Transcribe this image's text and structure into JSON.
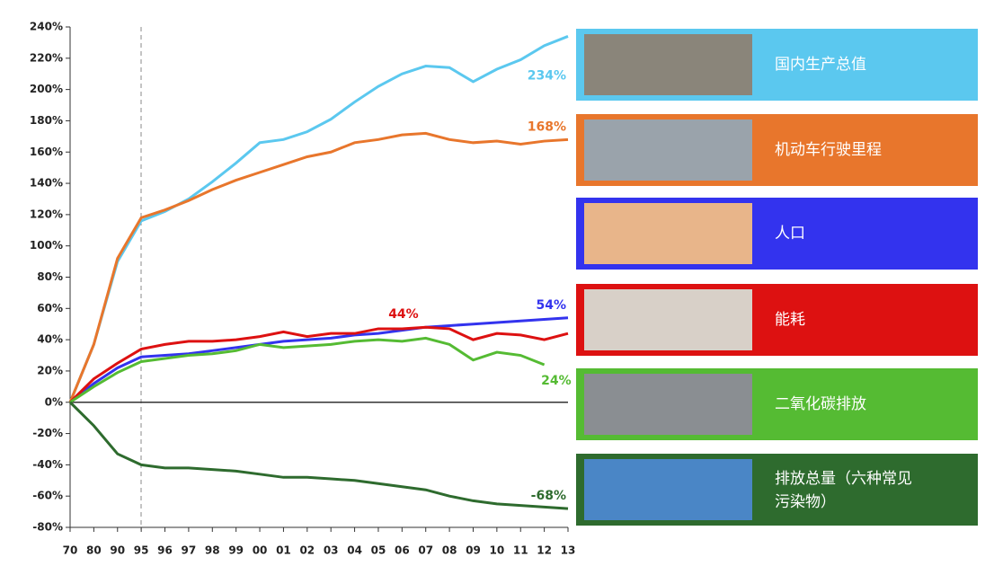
{
  "chart_data": {
    "type": "line",
    "categories": [
      "70",
      "80",
      "90",
      "95",
      "96",
      "97",
      "98",
      "99",
      "00",
      "01",
      "02",
      "03",
      "04",
      "05",
      "06",
      "07",
      "08",
      "09",
      "10",
      "11",
      "12",
      "13"
    ],
    "ylim": [
      -80,
      240
    ],
    "yticks": [
      {
        "value": -80,
        "label": "-80%"
      },
      {
        "value": -60,
        "label": "-60%"
      },
      {
        "value": -40,
        "label": "-40%"
      },
      {
        "value": -20,
        "label": "-20%"
      },
      {
        "value": 0,
        "label": "0%"
      },
      {
        "value": 20,
        "label": "20%"
      },
      {
        "value": 40,
        "label": "40%"
      },
      {
        "value": 60,
        "label": "60%"
      },
      {
        "value": 80,
        "label": "80%"
      },
      {
        "value": 100,
        "label": "100%"
      },
      {
        "value": 120,
        "label": "120%"
      },
      {
        "value": 140,
        "label": "140%"
      },
      {
        "value": 160,
        "label": "160%"
      },
      {
        "value": 180,
        "label": "180%"
      },
      {
        "value": 200,
        "label": "200%"
      },
      {
        "value": 220,
        "label": "220%"
      },
      {
        "value": 240,
        "label": "240%"
      }
    ],
    "series": [
      {
        "name": "国内生产总值",
        "color": "#5bc8ef",
        "values": [
          0,
          37,
          90,
          116,
          122,
          130,
          141,
          153,
          166,
          168,
          173,
          181,
          192,
          202,
          210,
          215,
          214,
          205,
          213,
          219,
          228,
          234
        ],
        "value_labels": [
          null,
          null,
          null,
          null,
          null,
          null,
          null,
          null,
          null,
          null,
          null,
          null,
          null,
          null,
          null,
          null,
          null,
          null,
          null,
          null,
          null,
          "234%"
        ]
      },
      {
        "name": "机动车行驶里程",
        "color": "#e8762c",
        "values": [
          0,
          37,
          92,
          118,
          123,
          129,
          136,
          142,
          147,
          152,
          157,
          160,
          166,
          168,
          171,
          172,
          168,
          166,
          167,
          165,
          167,
          168
        ],
        "value_labels": [
          null,
          null,
          null,
          null,
          null,
          null,
          null,
          null,
          null,
          null,
          null,
          null,
          null,
          null,
          null,
          null,
          null,
          null,
          null,
          null,
          null,
          "168%"
        ]
      },
      {
        "name": "人口",
        "color": "#3333ee",
        "values": [
          0,
          12,
          22,
          29,
          30,
          31,
          33,
          35,
          37,
          39,
          40,
          41,
          43,
          44,
          46,
          48,
          49,
          50,
          51,
          52,
          53,
          54
        ],
        "value_labels": [
          null,
          null,
          null,
          null,
          null,
          null,
          null,
          null,
          null,
          null,
          null,
          null,
          null,
          null,
          null,
          null,
          null,
          null,
          null,
          null,
          null,
          "54%"
        ]
      },
      {
        "name": "能耗",
        "color": "#dd1111",
        "values": [
          0,
          15,
          25,
          34,
          37,
          39,
          39,
          40,
          42,
          45,
          42,
          44,
          44,
          47,
          47,
          48,
          47,
          40,
          44,
          43,
          40,
          44
        ],
        "value_labels": [
          null,
          null,
          null,
          null,
          null,
          null,
          null,
          null,
          null,
          null,
          null,
          null,
          null,
          null,
          null,
          null,
          null,
          null,
          null,
          null,
          null,
          "44%"
        ]
      },
      {
        "name": "二氧化碳排放",
        "color": "#55bb33",
        "values": [
          0,
          10,
          19,
          26,
          28,
          30,
          31,
          33,
          37,
          35,
          36,
          37,
          39,
          40,
          39,
          41,
          37,
          27,
          32,
          30,
          24,
          null
        ],
        "value_labels": [
          null,
          null,
          null,
          null,
          null,
          null,
          null,
          null,
          null,
          null,
          null,
          null,
          null,
          null,
          null,
          null,
          null,
          null,
          null,
          null,
          "24%",
          null
        ]
      },
      {
        "name": "排放总量（六种常见污染物）",
        "color": "#2e6b2e",
        "values": [
          0,
          -15,
          -33,
          -40,
          -42,
          -42,
          -43,
          -44,
          -46,
          -48,
          -48,
          -49,
          -50,
          -52,
          -54,
          -56,
          -60,
          -63,
          -65,
          -66,
          -67,
          -68
        ],
        "value_labels": [
          null,
          null,
          null,
          null,
          null,
          null,
          null,
          null,
          null,
          null,
          null,
          null,
          null,
          null,
          null,
          null,
          null,
          null,
          null,
          null,
          null,
          "-68%"
        ]
      }
    ]
  }
}
